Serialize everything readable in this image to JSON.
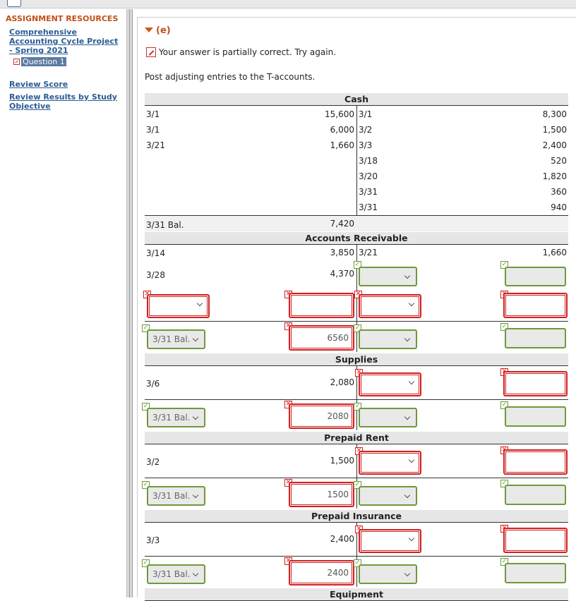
{
  "sidebar": {
    "title": "ASSIGNMENT RESOURCES",
    "project_link": "Comprehensive Accounting Cycle Project - Spring 2021",
    "question": "Question 1",
    "review_score": "Review Score",
    "review_results": "Review Results by Study Objective"
  },
  "section": {
    "label": "(e)",
    "status": "Your answer is partially correct.  Try again.",
    "instruction": "Post adjusting entries to the T-accounts."
  },
  "icons": {
    "wrong": "x-mark-icon",
    "right": "check-mark-icon",
    "dropdown": "chevron-down-icon",
    "pencil": "pencil-icon"
  },
  "colors": {
    "accent": "#c0501a",
    "link": "#2a5c94",
    "wrong": "#d02020",
    "correct": "#6e9a3a"
  },
  "accounts": {
    "cash": {
      "title": "Cash",
      "debits": [
        [
          "3/1",
          "15,600"
        ],
        [
          "3/1",
          "6,000"
        ],
        [
          "3/21",
          "1,660"
        ]
      ],
      "credits": [
        [
          "3/1",
          "8,300"
        ],
        [
          "3/2",
          "1,500"
        ],
        [
          "3/3",
          "2,400"
        ],
        [
          "3/18",
          "520"
        ],
        [
          "3/20",
          "1,820"
        ],
        [
          "3/31",
          "360"
        ],
        [
          "3/31",
          "940"
        ]
      ],
      "bal_label": "3/31 Bal.",
      "bal_amount": "7,420"
    },
    "ar": {
      "title": "Accounts Receivable",
      "d1_date": "3/14",
      "d1_amt": "3,850",
      "c1_date": "3/21",
      "c1_amt": "1,660",
      "d2_date": "3/28",
      "d2_amt": "4,370",
      "bal_select": "3/31 Bal.",
      "bal_amount": "6560"
    },
    "supplies": {
      "title": "Supplies",
      "d1_date": "3/6",
      "d1_amt": "2,080",
      "bal_select": "3/31 Bal.",
      "bal_amount": "2080"
    },
    "prepaid_rent": {
      "title": "Prepaid Rent",
      "d1_date": "3/2",
      "d1_amt": "1,500",
      "bal_select": "3/31 Bal.",
      "bal_amount": "1500"
    },
    "prepaid_ins": {
      "title": "Prepaid Insurance",
      "d1_date": "3/3",
      "d1_amt": "2,400",
      "bal_select": "3/31 Bal.",
      "bal_amount": "2400"
    },
    "equipment": {
      "title": "Equipment"
    }
  }
}
